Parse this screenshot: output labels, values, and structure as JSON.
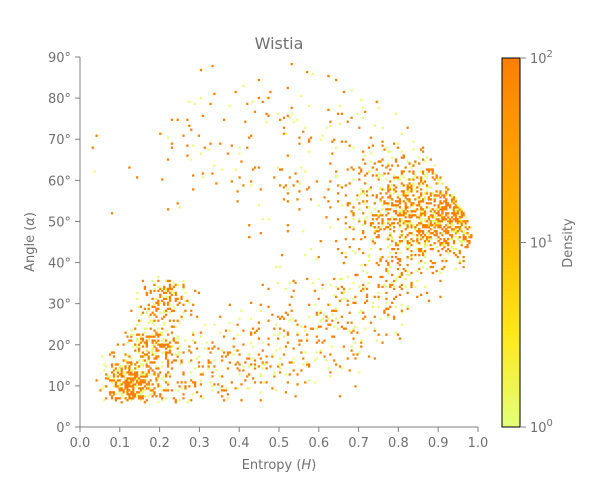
{
  "chart_data": {
    "type": "heatmap",
    "title": "Wistia",
    "xlabel": "Entropy (H)",
    "ylabel": "Angle (α)",
    "xlim": [
      0.0,
      1.0
    ],
    "ylim": [
      0,
      90
    ],
    "x_ticks": [
      "0.0",
      "0.1",
      "0.2",
      "0.3",
      "0.4",
      "0.5",
      "0.6",
      "0.7",
      "0.8",
      "0.9",
      "1.0"
    ],
    "y_ticks": [
      "0°",
      "10°",
      "20°",
      "30°",
      "40°",
      "50°",
      "60°",
      "70°",
      "80°",
      "90°"
    ],
    "colorbar": {
      "label": "Density",
      "scale": "log",
      "range": [
        1,
        100
      ],
      "ticks": [
        {
          "value": 1,
          "base": "10",
          "exp": "0"
        },
        {
          "value": 10,
          "base": "10",
          "exp": "1"
        },
        {
          "value": 100,
          "base": "10",
          "exp": "2"
        }
      ],
      "colormap": [
        "#e4ff7a",
        "#ffe81a",
        "#ffbd00",
        "#ffa000",
        "#fc7f00"
      ]
    },
    "density_components": [
      {
        "entropy_center": 0.85,
        "angle_center": 53,
        "entropy_spread": 0.09,
        "angle_spread": 7,
        "weight": 0.3
      },
      {
        "entropy_center": 0.96,
        "angle_center": 52,
        "entropy_spread": 0.03,
        "angle_spread": 4,
        "weight": 0.1
      },
      {
        "entropy_center": 0.12,
        "angle_center": 11,
        "entropy_spread": 0.03,
        "angle_spread": 3,
        "weight": 0.1
      },
      {
        "entropy_center": 0.18,
        "angle_center": 20,
        "entropy_spread": 0.04,
        "angle_spread": 3,
        "weight": 0.07
      },
      {
        "entropy_center": 0.21,
        "angle_center": 31,
        "entropy_spread": 0.03,
        "angle_spread": 2.5,
        "weight": 0.05
      },
      {
        "entropy_center": 0.55,
        "angle_center": 68,
        "entropy_spread": 0.22,
        "angle_spread": 10,
        "weight": 0.08
      }
    ]
  }
}
